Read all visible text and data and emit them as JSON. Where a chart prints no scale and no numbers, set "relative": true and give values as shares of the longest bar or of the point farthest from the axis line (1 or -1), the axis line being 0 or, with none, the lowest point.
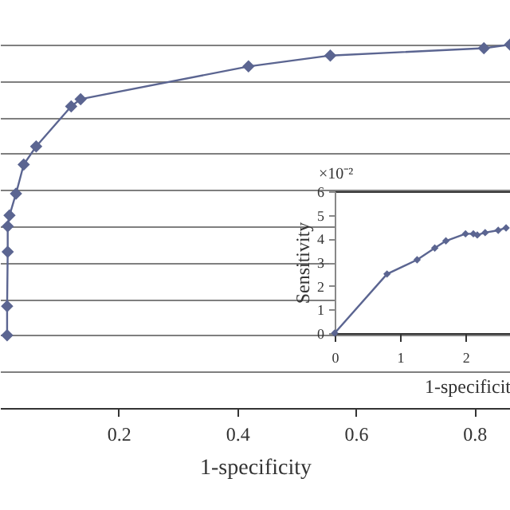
{
  "chart_data": [
    {
      "type": "line",
      "relative": true,
      "xlabel": "1-specificity",
      "xlim": [
        0,
        0.86
      ],
      "xticks": [
        0.2,
        0.4,
        0.6,
        0.8
      ],
      "grid": "y",
      "marker": "diamond",
      "color": "#5b6591",
      "x": [
        0.012,
        0.012,
        0.013,
        0.013,
        0.016,
        0.027,
        0.04,
        0.061,
        0.12,
        0.136,
        0.419,
        0.557,
        0.816,
        0.86
      ],
      "values": [
        0.2,
        0.28,
        0.43,
        0.5,
        0.53,
        0.59,
        0.67,
        0.72,
        0.83,
        0.85,
        0.94,
        0.97,
        0.99,
        1
      ]
    },
    {
      "type": "line",
      "xlabel": "1-specificit",
      "ylabel": "Sensitivity",
      "xlim": [
        0,
        2.68
      ],
      "ylim": [
        0,
        6
      ],
      "xticks": [
        0,
        1,
        2
      ],
      "yticks": [
        0,
        1,
        2,
        3,
        4,
        5,
        6
      ],
      "marker": "diamond",
      "color": "#5b6591",
      "annotations": [
        "×10⁻²"
      ],
      "x": [
        0,
        0.8,
        1.26,
        1.53,
        1.7,
        2.0,
        2.12,
        2.18,
        2.3,
        2.5,
        2.62
      ],
      "values": [
        0,
        2.5,
        3.1,
        3.6,
        3.9,
        4.2,
        4.2,
        4.15,
        4.25,
        4.35,
        4.45
      ]
    }
  ]
}
